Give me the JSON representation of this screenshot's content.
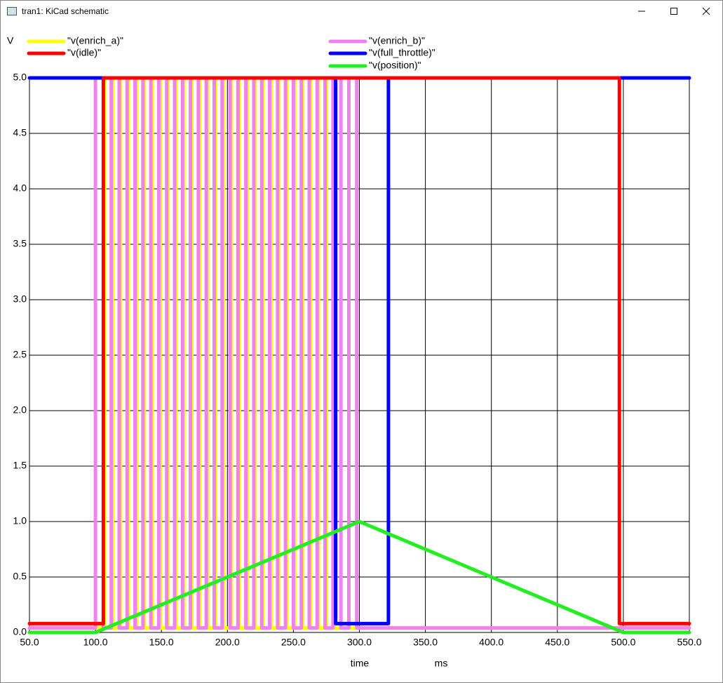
{
  "window_title": "tran1: KiCad schematic",
  "chart_data": {
    "type": "line",
    "y_label": "V",
    "x_label": "time",
    "x_unit": "ms",
    "xlim": [
      50,
      550
    ],
    "ylim": [
      0,
      5
    ],
    "xticks": [
      {
        "value": 50,
        "label": "50.0"
      },
      {
        "value": 100,
        "label": "100.0"
      },
      {
        "value": 150,
        "label": "150.0"
      },
      {
        "value": 200,
        "label": "200.0"
      },
      {
        "value": 250,
        "label": "250.0"
      },
      {
        "value": 300,
        "label": "300.0"
      },
      {
        "value": 350,
        "label": "350.0"
      },
      {
        "value": 400,
        "label": "400.0"
      },
      {
        "value": 450,
        "label": "450.0"
      },
      {
        "value": 500,
        "label": "500.0"
      },
      {
        "value": 550,
        "label": "550.0"
      }
    ],
    "yticks": [
      {
        "value": 0,
        "label": "0.0"
      },
      0.5,
      {
        "value": 1,
        "label": "1.0"
      },
      1.5,
      {
        "value": 2,
        "label": "2.0"
      },
      2.5,
      {
        "value": 3,
        "label": "3.0"
      },
      3.5,
      {
        "value": 4,
        "label": "4.0"
      },
      4.5,
      {
        "value": 5,
        "label": "5.0"
      }
    ],
    "grid": true,
    "series": [
      {
        "name": "\"v(enrich_a)\"",
        "color": "#ffff00",
        "x": [
          50,
          107,
          107,
          113,
          113,
          119,
          119,
          125,
          125,
          131,
          131,
          137,
          137,
          143,
          143,
          149,
          149,
          155,
          155,
          161,
          161,
          167,
          167,
          173,
          173,
          179,
          179,
          185,
          185,
          191,
          191,
          197,
          197,
          203,
          203,
          209,
          209,
          215,
          215,
          221,
          221,
          227,
          227,
          233,
          233,
          239,
          239,
          245,
          245,
          251,
          251,
          257,
          257,
          263,
          263,
          269,
          269,
          275,
          275,
          281,
          281,
          550
        ],
        "values": [
          0.04,
          0.04,
          5,
          5,
          0.04,
          0.04,
          5,
          5,
          0.04,
          0.04,
          5,
          5,
          0.04,
          0.04,
          5,
          5,
          0.04,
          0.04,
          5,
          5,
          0.04,
          0.04,
          5,
          5,
          0.04,
          0.04,
          5,
          5,
          0.04,
          0.04,
          5,
          5,
          0.04,
          0.04,
          5,
          5,
          0.04,
          0.04,
          5,
          5,
          0.04,
          0.04,
          5,
          5,
          0.04,
          0.04,
          5,
          5,
          0.04,
          0.04,
          5,
          5,
          0.04,
          0.04,
          5,
          5,
          0.04,
          0.04,
          5,
          5,
          0.04,
          0.04
        ]
      },
      {
        "name": "\"v(enrich_b)\"",
        "color": "#ee82ee",
        "x": [
          50,
          100,
          100,
          106,
          106,
          112,
          112,
          118,
          118,
          124,
          124,
          130,
          130,
          136,
          136,
          142,
          142,
          148,
          148,
          154,
          154,
          160,
          160,
          166,
          166,
          172,
          172,
          178,
          178,
          184,
          184,
          190,
          190,
          196,
          196,
          202,
          202,
          208,
          208,
          214,
          214,
          220,
          220,
          226,
          226,
          232,
          232,
          238,
          238,
          244,
          244,
          250,
          250,
          256,
          256,
          262,
          262,
          268,
          268,
          274,
          274,
          280,
          280,
          286,
          286,
          292,
          292,
          298,
          298,
          550
        ],
        "values": [
          0.04,
          0.04,
          5,
          5,
          0.04,
          0.04,
          5,
          5,
          0.04,
          0.04,
          5,
          5,
          0.04,
          0.04,
          5,
          5,
          0.04,
          0.04,
          5,
          5,
          0.04,
          0.04,
          5,
          5,
          0.04,
          0.04,
          5,
          5,
          0.04,
          0.04,
          5,
          5,
          0.04,
          0.04,
          5,
          5,
          0.04,
          0.04,
          5,
          5,
          0.04,
          0.04,
          5,
          5,
          0.04,
          0.04,
          5,
          5,
          0.04,
          0.04,
          5,
          5,
          0.04,
          0.04,
          5,
          5,
          0.04,
          0.04,
          5,
          5,
          0.04,
          0.04,
          5,
          5,
          0.04,
          0.04,
          5,
          5,
          0.04,
          0.04
        ]
      },
      {
        "name": "\"v(full_throttle)\"",
        "color": "#0000ff",
        "x": [
          50,
          282,
          282,
          322,
          322,
          550
        ],
        "values": [
          5,
          5,
          0.08,
          0.08,
          5,
          5
        ]
      },
      {
        "name": "\"v(idle)\"",
        "color": "#ff0000",
        "x": [
          50,
          106,
          106,
          497,
          497,
          550
        ],
        "values": [
          0.08,
          0.08,
          5,
          5,
          0.08,
          0.08
        ]
      },
      {
        "name": "\"v(position)\"",
        "color": "#22ee22",
        "x": [
          50,
          100,
          300,
          500,
          550
        ],
        "values": [
          0,
          0,
          1,
          0,
          0
        ]
      }
    ]
  }
}
